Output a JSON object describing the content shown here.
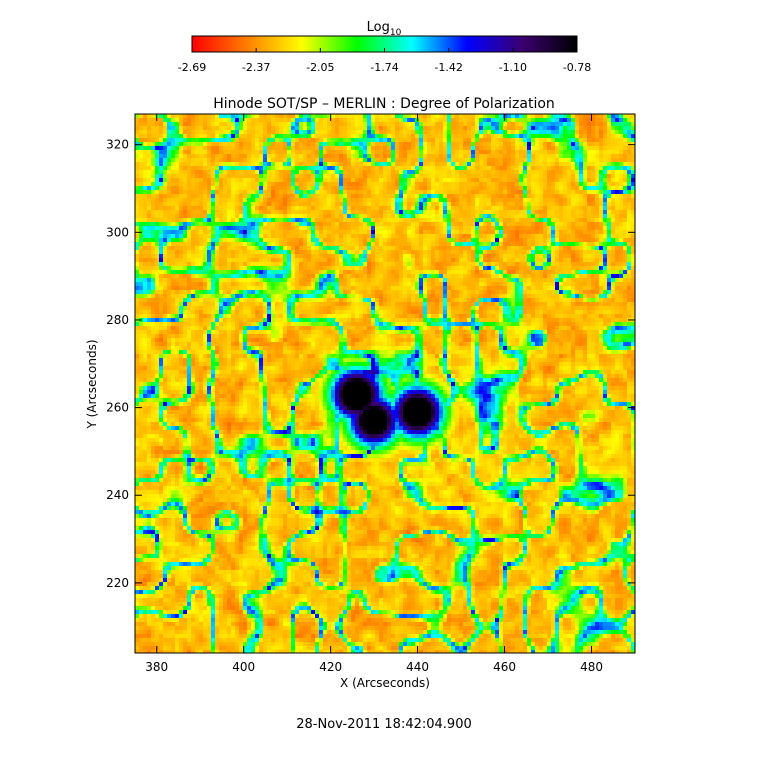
{
  "chart_data": {
    "type": "heatmap",
    "title": "Hinode SOT/SP – MERLIN : Degree of Polarization",
    "xlabel": "X (Arcseconds)",
    "ylabel": "Y (Arcseconds)",
    "xlim": [
      375,
      490
    ],
    "ylim": [
      204,
      327
    ],
    "xticks": [
      380,
      400,
      420,
      440,
      460,
      480
    ],
    "yticks": [
      220,
      240,
      260,
      280,
      300,
      320
    ],
    "colorbar": {
      "label_base": "Log",
      "label_sub": "10",
      "range": [
        -2.69,
        -0.78
      ],
      "ticks": [
        "-2.69",
        "-2.37",
        "-2.05",
        "-1.74",
        "-1.42",
        "-1.10",
        "-0.78"
      ],
      "colors": [
        "#ff0000",
        "#ff7f00",
        "#ffff00",
        "#00ff00",
        "#00ffff",
        "#0000ff",
        "#3b0070",
        "#000000"
      ]
    },
    "features": [
      {
        "kind": "sunspot-umbra",
        "x": 426,
        "y": 263,
        "log_value": -0.85
      },
      {
        "kind": "sunspot-umbra",
        "x": 440,
        "y": 259,
        "log_value": -0.9
      },
      {
        "kind": "sunspot-umbra",
        "x": 430,
        "y": 257,
        "log_value": -1.0
      }
    ],
    "footer": "28-Nov-2011 18:42:04.900"
  }
}
